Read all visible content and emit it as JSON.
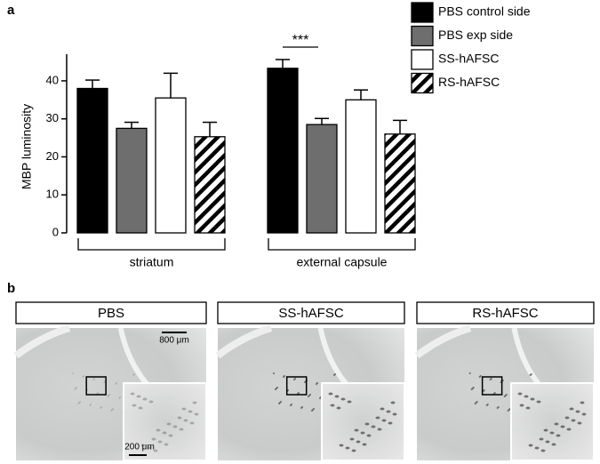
{
  "chart_data": {
    "type": "bar",
    "panel_label": "a",
    "y_label": "MBP luminosity",
    "categories": [
      "striatum",
      "external capsule"
    ],
    "series": [
      {
        "name": "PBS control side",
        "color": "#000000",
        "values": [
          38,
          43.3
        ],
        "errors": [
          2.2,
          2.3
        ]
      },
      {
        "name": "PBS exp side",
        "color": "#6e6e6e",
        "values": [
          27.5,
          28.5
        ],
        "errors": [
          1.6,
          1.6
        ]
      },
      {
        "name": "SS-hAFSC",
        "color": "#ffffff",
        "values": [
          35.5,
          35
        ],
        "errors": [
          6.5,
          2.6
        ]
      },
      {
        "name": "RS-hAFSC",
        "color": "#ffffff",
        "hatch": true,
        "values": [
          25.3,
          26
        ],
        "errors": [
          3.8,
          3.6
        ]
      }
    ],
    "annotation": "***",
    "ylim": [
      0,
      47
    ],
    "yticks": [
      0,
      10,
      20,
      30,
      40
    ],
    "legend": "top-right"
  },
  "panel_b": {
    "label": "b",
    "panels": [
      {
        "title": "PBS",
        "scale_bars": [
          "800 μm",
          "200 μm"
        ]
      },
      {
        "title": "SS-hAFSC"
      },
      {
        "title": "RS-hAFSC"
      }
    ]
  }
}
